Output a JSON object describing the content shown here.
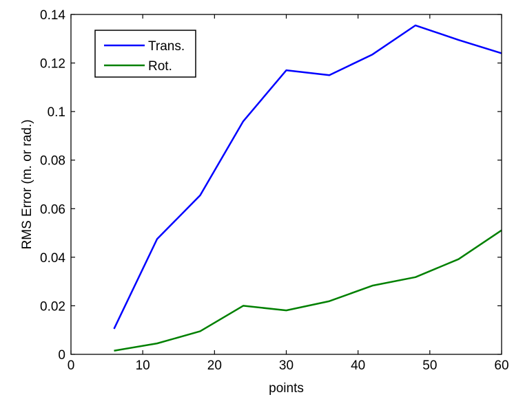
{
  "chart_data": {
    "type": "line",
    "title": "",
    "xlabel": "points",
    "ylabel": "RMS Error (m. or rad.)",
    "xlim": [
      0,
      60
    ],
    "ylim": [
      0,
      0.14
    ],
    "xticks": [
      0,
      10,
      20,
      30,
      40,
      50,
      60
    ],
    "yticks": [
      0,
      0.02,
      0.04,
      0.06,
      0.08,
      0.1,
      0.12,
      0.14
    ],
    "xtick_labels": [
      "0",
      "10",
      "20",
      "30",
      "40",
      "50",
      "60"
    ],
    "ytick_labels": [
      "0",
      "0.02",
      "0.04",
      "0.06",
      "0.08",
      "0.1",
      "0.12",
      "0.14"
    ],
    "grid": false,
    "legend_position": "top-left",
    "x": [
      6,
      12,
      18,
      24,
      30,
      36,
      42,
      48,
      54,
      60
    ],
    "series": [
      {
        "name": "Trans.",
        "color": "#0000ff",
        "values": [
          0.0105,
          0.0475,
          0.0655,
          0.096,
          0.117,
          0.115,
          0.1235,
          0.1355,
          0.1295,
          0.124
        ]
      },
      {
        "name": "Rot.",
        "color": "#008000",
        "values": [
          0.0015,
          0.0045,
          0.0095,
          0.02,
          0.0181,
          0.0219,
          0.0283,
          0.0318,
          0.0392,
          0.0511
        ]
      }
    ]
  }
}
